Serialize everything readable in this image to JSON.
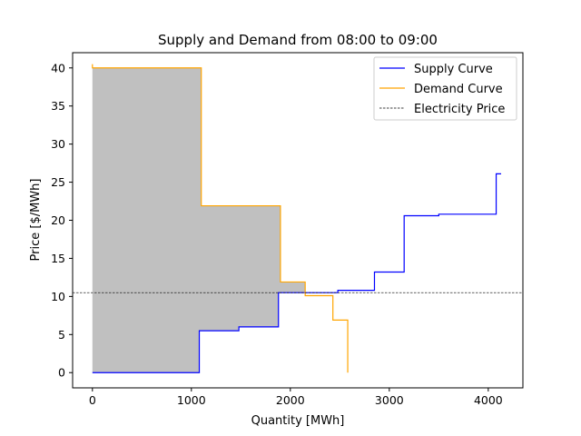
{
  "chart_data": {
    "type": "line",
    "title": "Supply and Demand from 08:00 to 09:00",
    "xlabel": "Quantity [MWh]",
    "ylabel": "Price [$/MWh]",
    "xlim": [
      -200,
      4350
    ],
    "ylim": [
      -2,
      42
    ],
    "xticks": [
      0,
      1000,
      2000,
      3000,
      4000
    ],
    "yticks": [
      0,
      5,
      10,
      15,
      20,
      25,
      30,
      35,
      40
    ],
    "grid": false,
    "legend_position": "top-right",
    "series": [
      {
        "name": "Supply Curve",
        "color": "#0000ff",
        "step": true,
        "x": [
          0,
          1080,
          1080,
          1480,
          1480,
          1880,
          1880,
          2480,
          2480,
          2850,
          2850,
          3150,
          3150,
          3500,
          3500,
          4080,
          4080,
          4130
        ],
        "y": [
          0,
          0,
          5.5,
          5.5,
          6,
          6,
          10.5,
          10.5,
          10.8,
          10.8,
          13.2,
          13.2,
          20.6,
          20.6,
          20.8,
          20.8,
          26.1,
          26.1
        ]
      },
      {
        "name": "Demand Curve",
        "color": "#ffa500",
        "step": true,
        "x": [
          0,
          0,
          1100,
          1100,
          1900,
          1900,
          2150,
          2150,
          2430,
          2430,
          2580,
          2580
        ],
        "y": [
          40.5,
          40,
          40,
          21.9,
          21.9,
          11.9,
          11.9,
          10.1,
          10.1,
          6.9,
          6.9,
          0
        ]
      },
      {
        "name": "Electricity Price",
        "color": "#000000",
        "dashed": true,
        "y_value": 10.5
      }
    ],
    "shaded_region": {
      "color": "#c0c0c0",
      "x": [
        0,
        1080,
        1080,
        1100,
        1100,
        1480,
        1480,
        1880,
        1880,
        1900,
        1900,
        2150
      ],
      "upper": [
        40,
        40,
        40,
        40,
        21.9,
        21.9,
        21.9,
        21.9,
        21.9,
        21.9,
        11.9,
        11.9
      ],
      "lower": [
        0,
        0,
        5.5,
        5.5,
        5.5,
        5.5,
        6,
        6,
        10.5,
        10.5,
        10.5,
        10.5
      ]
    }
  }
}
